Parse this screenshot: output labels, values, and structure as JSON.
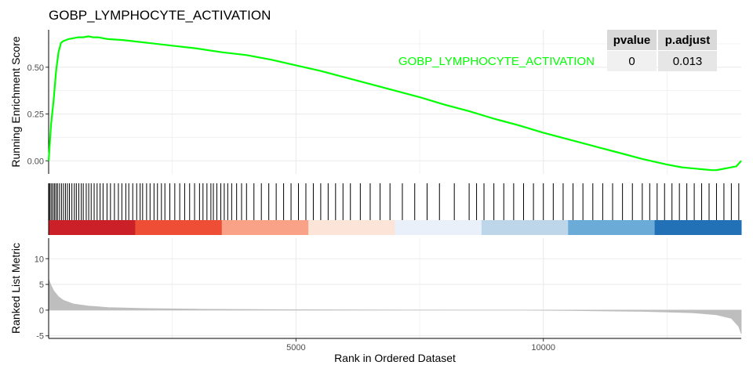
{
  "chart_data": {
    "type": "line",
    "title": "GOBP_LYMPHOCYTE_ACTIVATION",
    "xlabel": "Rank in Ordered Dataset",
    "x_ticks": [
      5000,
      10000
    ],
    "x_range": [
      0,
      14000
    ],
    "panels": {
      "running_score": {
        "ylabel": "Running Enrichment Score",
        "y_ticks": [
          0.0,
          0.25,
          0.5
        ],
        "y_tick_labels": [
          "0.00",
          "0.25",
          "0.50"
        ],
        "ylim": [
          -0.07,
          0.7
        ],
        "series": [
          {
            "name": "GOBP_LYMPHOCYTE_ACTIVATION",
            "color": "#00ff00",
            "x": [
              0,
              50,
              100,
              150,
              200,
              250,
              300,
              350,
              400,
              500,
              600,
              700,
              800,
              900,
              1000,
              1200,
              1500,
              2000,
              2500,
              3000,
              3500,
              4000,
              4500,
              5000,
              5500,
              6000,
              6500,
              7000,
              7500,
              8000,
              8500,
              9000,
              9500,
              10000,
              10500,
              11000,
              11500,
              12000,
              12500,
              12800,
              13000,
              13200,
              13400,
              13500,
              13600,
              13700,
              13800,
              13900,
              14000
            ],
            "y": [
              0.0,
              0.2,
              0.32,
              0.48,
              0.58,
              0.63,
              0.64,
              0.645,
              0.65,
              0.655,
              0.66,
              0.66,
              0.665,
              0.66,
              0.66,
              0.65,
              0.645,
              0.63,
              0.615,
              0.6,
              0.58,
              0.565,
              0.54,
              0.51,
              0.48,
              0.445,
              0.41,
              0.375,
              0.34,
              0.3,
              0.265,
              0.225,
              0.19,
              0.15,
              0.115,
              0.08,
              0.045,
              0.01,
              -0.02,
              -0.035,
              -0.04,
              -0.045,
              -0.05,
              -0.05,
              -0.045,
              -0.04,
              -0.035,
              -0.03,
              0.0
            ]
          }
        ]
      },
      "table": {
        "headers": [
          "pvalue",
          "p.adjust"
        ],
        "rows": [
          {
            "label": "GOBP_LYMPHOCYTE_ACTIVATION",
            "values": [
              "0",
              "0.013"
            ]
          }
        ]
      },
      "hits": {
        "x": [
          10,
          30,
          60,
          90,
          120,
          150,
          180,
          220,
          260,
          300,
          340,
          380,
          420,
          470,
          520,
          560,
          610,
          660,
          700,
          760,
          810,
          860,
          920,
          980,
          1040,
          1100,
          1180,
          1250,
          1330,
          1410,
          1480,
          1560,
          1620,
          1700,
          1780,
          1850,
          1900,
          1980,
          2050,
          2130,
          2200,
          2280,
          2350,
          2450,
          2550,
          2650,
          2750,
          2850,
          2950,
          3050,
          3120,
          3200,
          3280,
          3330,
          3400,
          3480,
          3550,
          3620,
          3700,
          3800,
          3900,
          4000,
          4150,
          4300,
          4450,
          4600,
          4750,
          4900,
          5050,
          5200,
          5350,
          5500,
          5650,
          5800,
          5950,
          6100,
          6300,
          6500,
          6700,
          6900,
          7150,
          7400,
          7650,
          7900,
          8200,
          8500,
          8650,
          8800,
          9000,
          9200,
          9400,
          9600,
          9800,
          10000,
          10200,
          10400,
          10600,
          10800,
          11000,
          11200,
          11400,
          11600,
          11800,
          12000,
          12150,
          12300,
          12450,
          12600,
          12750,
          12900,
          13050,
          13200,
          13350,
          13500,
          13650,
          13800,
          13950
        ]
      },
      "ranked_metric": {
        "ylabel": "Ranked List Metric",
        "y_ticks": [
          -5,
          0,
          5,
          10
        ],
        "y_tick_labels": [
          "-5",
          "0",
          "5",
          "10"
        ],
        "ylim": [
          -5.5,
          14
        ],
        "series": [
          {
            "name": "",
            "color": "#bebebe",
            "x": [
              0,
              50,
              100,
              200,
              300,
              500,
              800,
              1200,
              2000,
              3000,
              5000,
              7000,
              8500,
              9000,
              9500,
              10500,
              12000,
              13000,
              13500,
              13800,
              13950,
              14000
            ],
            "y": [
              6.0,
              4.8,
              3.8,
              2.6,
              1.9,
              1.2,
              0.8,
              0.5,
              0.3,
              0.18,
              0.07,
              0.02,
              0.0,
              0.0,
              0.0,
              -0.08,
              -0.25,
              -0.5,
              -0.9,
              -1.6,
              -3.2,
              -4.6
            ]
          }
        ]
      }
    },
    "gradient_colors": [
      "#cb2027",
      "#ee4e36",
      "#f9a287",
      "#fde4d8",
      "#eaf0fa",
      "#bdd6ea",
      "#6aabd8",
      "#2270b5"
    ],
    "line_color": "#00ff00"
  }
}
